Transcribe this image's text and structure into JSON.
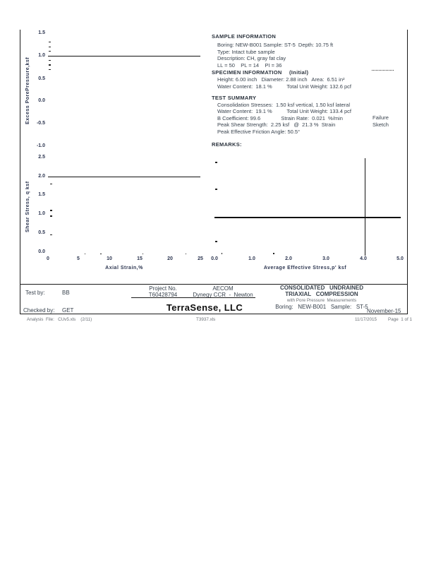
{
  "sample_info": {
    "title": "SAMPLE  INFORMATION",
    "lines": [
      "Boring: NEW-B001 Sample: ST-5  Depth: 10.75 ft",
      "Type: Intact tube sample",
      "Description: CH, gray fat clay",
      "LL = 50    PL = 14    PI = 36"
    ]
  },
  "specimen_info": {
    "title": "SPECIMEN  INFORMATION",
    "note": "(Initial)",
    "lines": [
      "Height: 6.00 inch   Diameter: 2.88 inch   Area:  6.51 in²",
      "Water Content:  18.1 %          Total Unit Weight: 132.6 pcf"
    ]
  },
  "test_summary": {
    "title": "TEST  SUMMARY",
    "lines": [
      "Consolidation Stresses:  1.50 ksf vertical, 1.50 ksf lateral",
      "Water Content:  19.1 %          Total Unit Weight: 133.4 pcf",
      "B Coefficient: 99.6              Strain Rate:  0.021  %/min",
      "Peak Shear Strength:  2.25 ksf   @  21.3 %  Strain",
      "Peak Effective Friction Angle: 50.5°"
    ],
    "failure_label_1": "Failure",
    "failure_label_2": "Sketch"
  },
  "remarks": {
    "title": "REMARKS:"
  },
  "footer_table": {
    "test_by_label": "Test by:",
    "test_by_value": "BB",
    "checked_by_label": "Checked by:",
    "checked_by_value": "GET",
    "project_no_label": "Project No.",
    "project_no_value": "T60428794",
    "client": "AECOM",
    "project_name": "Dynegy CCR  -  Newton",
    "company": "TerraSense, LLC",
    "test_title_1": "CONSOLIDATED   UNDRAINED",
    "test_title_2": "TRIAXIAL   COMPRESSION",
    "test_title_3": "with Pore Pressure  Measurements",
    "boring_line": "Boring:   NEW-B001   Sample:   ST-5",
    "date": "November-15"
  },
  "page_footer": {
    "left": "Analysis  File:   CUv5.xls    (2/11)",
    "center": "T3937.xls",
    "date": "11/17/2015",
    "page": "Page  1 of 1"
  },
  "chart_data": [
    {
      "id": "excess_pore_pressure",
      "type": "line",
      "title": "",
      "xlabel": "",
      "ylabel": "Excess  PorePressure,ksf",
      "yticks": [
        "1.5",
        "1.0",
        "0.5",
        "0.0",
        "-0.5",
        "-1.0"
      ],
      "ylim": [
        -1.0,
        1.5
      ],
      "xlim": [
        0,
        25
      ],
      "grid": false,
      "segments": [
        {
          "x1": 0,
          "y1": 1.0,
          "x2": 25,
          "y2": 1.0
        }
      ],
      "markers": [
        {
          "x": 0.3,
          "y": 1.3
        },
        {
          "x": 0.3,
          "y": 1.2
        },
        {
          "x": 0.3,
          "y": 1.1
        },
        {
          "x": 0.3,
          "y": 0.9
        },
        {
          "x": 0.3,
          "y": 0.8
        },
        {
          "x": 0.3,
          "y": 0.7
        }
      ]
    },
    {
      "id": "shear_stress",
      "type": "line",
      "title": "",
      "xlabel": "Axial  Strain,%",
      "ylabel": "Shear  Stress,  q  ksf",
      "yticks": [
        "2.5",
        "2.0",
        "1.5",
        "1.0",
        "0.5",
        "0.0"
      ],
      "xticks": [
        "0",
        "5",
        "10",
        "15",
        "20",
        "25"
      ],
      "ylim": [
        0,
        2.5
      ],
      "xlim": [
        0,
        25
      ],
      "grid": false,
      "segments": [
        {
          "x1": 0,
          "y1": 2.0,
          "x2": 25,
          "y2": 2.0
        }
      ],
      "markers": [
        {
          "x": 0.5,
          "y": 1.8
        },
        {
          "x": 0.5,
          "y": 1.1
        },
        {
          "x": 0.5,
          "y": 0.95
        },
        {
          "x": 0.5,
          "y": 0.45
        },
        {
          "x": 6.1,
          "y": -0.05,
          "dot": true
        },
        {
          "x": 8.7,
          "y": -0.05,
          "dot": true
        },
        {
          "x": 15.6,
          "y": -0.05,
          "dot": true
        },
        {
          "x": 22.6,
          "y": -0.05,
          "dot": true
        }
      ]
    },
    {
      "id": "stress_path",
      "type": "line",
      "title": "",
      "xlabel": "Average  Effective Stress,p'  ksf",
      "ylabel": "",
      "xticks": [
        "0.0",
        "1.0",
        "2.0",
        "3.0",
        "4.0",
        "5.0"
      ],
      "xlim": [
        0,
        5
      ],
      "ylim": [
        0,
        2.5
      ],
      "grid": false,
      "segments": [
        {
          "x1": 4.05,
          "y1": -0.1,
          "x2": 4.05,
          "y2": 2.48
        },
        {
          "x1": 0,
          "y1": 0.93,
          "x2": 5.02,
          "y2": 0.93
        }
      ],
      "markers": [
        {
          "x": 0.05,
          "y": 2.37
        },
        {
          "x": 0.05,
          "y": 1.66
        },
        {
          "x": 0.05,
          "y": 0.28
        },
        {
          "x": 0.2,
          "y": -0.04,
          "dot": true
        },
        {
          "x": 1.6,
          "y": -0.04,
          "dot": true
        }
      ]
    }
  ]
}
